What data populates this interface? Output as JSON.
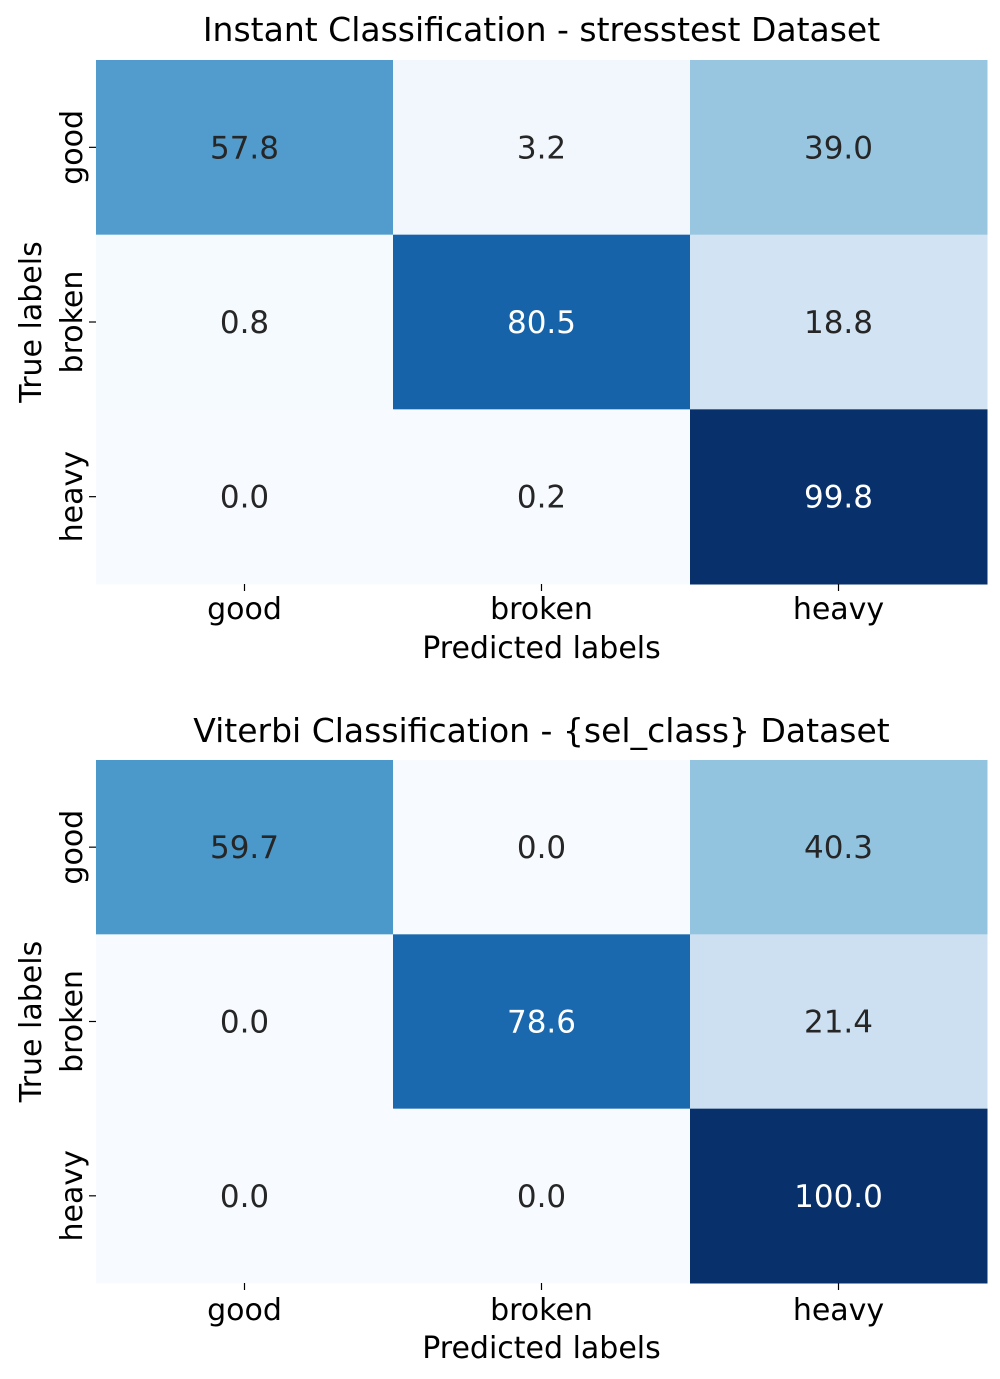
{
  "chart_data": [
    {
      "type": "heatmap",
      "title": "Instant Classification - stresstest Dataset",
      "xlabel": "Predicted labels",
      "ylabel": "True labels",
      "x_categories": [
        "good",
        "broken",
        "heavy"
      ],
      "y_categories": [
        "good",
        "broken",
        "heavy"
      ],
      "values": [
        [
          57.8,
          3.2,
          39.0
        ],
        [
          0.8,
          80.5,
          18.8
        ],
        [
          0.0,
          0.2,
          99.8
        ]
      ],
      "value_labels": [
        [
          "57.8",
          "3.2",
          "39.0"
        ],
        [
          "0.8",
          "80.5",
          "18.8"
        ],
        [
          "0.0",
          "0.2",
          "99.8"
        ]
      ],
      "colormap": "Blues",
      "colorbar": false
    },
    {
      "type": "heatmap",
      "title": "Viterbi Classification - {sel_class} Dataset",
      "xlabel": "Predicted labels",
      "ylabel": "True labels",
      "x_categories": [
        "good",
        "broken",
        "heavy"
      ],
      "y_categories": [
        "good",
        "broken",
        "heavy"
      ],
      "values": [
        [
          59.7,
          0.0,
          40.3
        ],
        [
          0.0,
          78.6,
          21.4
        ],
        [
          0.0,
          0.0,
          100.0
        ]
      ],
      "value_labels": [
        [
          "59.7",
          "0.0",
          "40.3"
        ],
        [
          "0.0",
          "78.6",
          "21.4"
        ],
        [
          "0.0",
          "0.0",
          "100.0"
        ]
      ],
      "colormap": "Blues",
      "colorbar": false
    }
  ]
}
